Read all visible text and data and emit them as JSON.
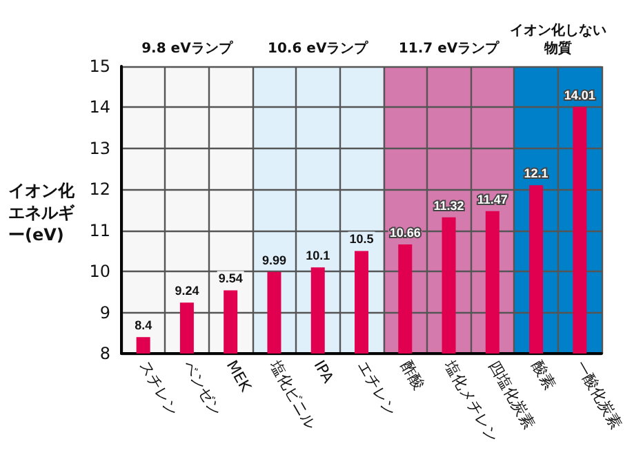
{
  "chart_data": {
    "type": "bar",
    "ylabel": "イオン化エネルギー(eV)",
    "categories": [
      "スチレン",
      "ベンゼン",
      "MEK",
      "塩化ビニル",
      "IPA",
      "エチレン",
      "酢酸",
      "塩化メチレン",
      "四塩化炭素",
      "酸素",
      "一酸化炭素"
    ],
    "values": [
      8.4,
      9.24,
      9.54,
      9.99,
      10.1,
      10.5,
      10.66,
      11.32,
      11.47,
      12.1,
      14.01
    ],
    "color": "#e0004f",
    "data_labels": true,
    "ylim": [
      8,
      15
    ],
    "yticks": [
      8,
      9,
      10,
      11,
      12,
      13,
      14,
      15
    ],
    "grid": true,
    "bands": [
      {
        "axis": "x",
        "from": "スチレン",
        "to": "MEK",
        "label": "9.8 eVランプ",
        "color": "#f7f7f7"
      },
      {
        "axis": "x",
        "from": "塩化ビニル",
        "to": "エチレン",
        "label": "10.6 eVランプ",
        "color": "#dff0fb"
      },
      {
        "axis": "x",
        "from": "酢酸",
        "to": "四塩化炭素",
        "label": "11.7 eVランプ",
        "color": "#d57aad"
      },
      {
        "axis": "x",
        "from": "酸素",
        "to": "一酸化炭素",
        "label": "イオン化しない物質",
        "color": "#0080c8"
      }
    ]
  }
}
